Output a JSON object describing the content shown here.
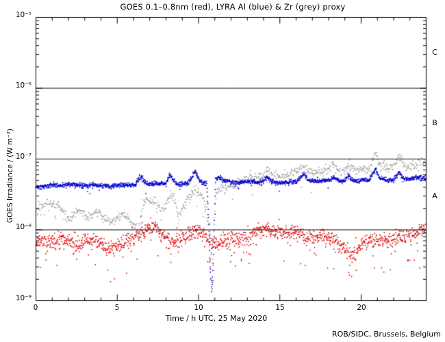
{
  "credit": "ROB/SIDC, Brussels, Belgium",
  "colors": {
    "background": "#ffffff",
    "frame": "#000000",
    "goes_red": "#dd0000",
    "lyra_al_blue": "#0000cc",
    "lyra_zr_grey": "#9e9e9e"
  },
  "chart_data": {
    "type": "scatter",
    "title": "GOES 0.1–0.8nm (red), LYRA Al (blue) & Zr (grey) proxy",
    "xlabel": "Time / h UTC, 25 May 2020",
    "ylabel": "GOES Irradiance / (W m⁻²)",
    "x_range": [
      0,
      24
    ],
    "x_minor_step": 1,
    "x_ticks": [
      {
        "value": 0,
        "label": "0"
      },
      {
        "value": 5,
        "label": "5"
      },
      {
        "value": 10,
        "label": "10"
      },
      {
        "value": 15,
        "label": "15"
      },
      {
        "value": 20,
        "label": "20"
      }
    ],
    "y_scale": "log",
    "y_range": [
      1e-09,
      1e-05
    ],
    "y_ticks": [
      {
        "value": 1e-05,
        "label": "10⁻⁵"
      },
      {
        "value": 1e-06,
        "label": "10⁻⁶"
      },
      {
        "value": 1e-07,
        "label": "10⁻⁷"
      },
      {
        "value": 1e-08,
        "label": "10⁻⁸"
      },
      {
        "value": 1e-09,
        "label": "10⁻⁹"
      }
    ],
    "hlines": [
      1e-06,
      1e-07,
      1e-08
    ],
    "flare_class_labels": [
      {
        "label": "C",
        "value": 3.16e-06
      },
      {
        "label": "B",
        "value": 3.16e-07
      },
      {
        "label": "A",
        "value": 3.16e-08
      }
    ],
    "grid": false,
    "legend": "in title",
    "series": [
      {
        "name": "GOES 0.1-0.8nm",
        "color": "#dd0000",
        "points_per_hour": 55,
        "jitter_dex": 0.055,
        "outlier_rate": 0.06,
        "outlier_dex": 0.45,
        "seed": 11,
        "anchors": [
          [
            0,
            7e-09
          ],
          [
            0.5,
            6.8e-09
          ],
          [
            1,
            6.5e-09
          ],
          [
            1.5,
            7e-09
          ],
          [
            2,
            7.2e-09
          ],
          [
            2.5,
            6.2e-09
          ],
          [
            3,
            7e-09
          ],
          [
            3.5,
            6.8e-09
          ],
          [
            4,
            6.2e-09
          ],
          [
            4.6,
            5.4e-09
          ],
          [
            5,
            6e-09
          ],
          [
            5.6,
            6.8e-09
          ],
          [
            6.2,
            8e-09
          ],
          [
            6.9,
            1.05e-08
          ],
          [
            7.3,
            1.1e-08
          ],
          [
            7.7,
            9e-09
          ],
          [
            8.2,
            6.8e-09
          ],
          [
            8.8,
            7.2e-09
          ],
          [
            9.4,
            8.5e-09
          ],
          [
            9.9,
            1e-08
          ],
          [
            10.3,
            9e-09
          ],
          [
            10.7,
            6.5e-09
          ],
          [
            11.1,
            6e-09
          ],
          [
            11.5,
            7e-09
          ],
          [
            12,
            7.5e-09
          ],
          [
            12.5,
            7.2e-09
          ],
          [
            13,
            8e-09
          ],
          [
            13.6,
            9.5e-09
          ],
          [
            14,
            1e-08
          ],
          [
            14.5,
            9.2e-09
          ],
          [
            15,
            9.8e-09
          ],
          [
            15.5,
            8.8e-09
          ],
          [
            16,
            9.2e-09
          ],
          [
            16.5,
            8.2e-09
          ],
          [
            17,
            7.8e-09
          ],
          [
            17.5,
            8.2e-09
          ],
          [
            18,
            7.6e-09
          ],
          [
            18.5,
            6.6e-09
          ],
          [
            19,
            5.4e-09
          ],
          [
            19.4,
            4.4e-09
          ],
          [
            19.8,
            5.2e-09
          ],
          [
            20.2,
            6.6e-09
          ],
          [
            20.6,
            7e-09
          ],
          [
            21,
            7.4e-09
          ],
          [
            21.5,
            7e-09
          ],
          [
            22,
            7.6e-09
          ],
          [
            22.5,
            8e-09
          ],
          [
            23,
            8.6e-09
          ],
          [
            23.5,
            9.6e-09
          ],
          [
            24,
            1.1e-08
          ]
        ]
      },
      {
        "name": "LYRA Zr proxy",
        "color": "#9e9e9e",
        "points_per_hour": 34,
        "jitter_dex": 0.034,
        "outlier_rate": 0.03,
        "outlier_dex": 0.3,
        "seed": 22,
        "anchors": [
          [
            0,
            1.8e-08
          ],
          [
            0.4,
            2.2e-08
          ],
          [
            0.8,
            2.5e-08
          ],
          [
            1.2,
            2.2e-08
          ],
          [
            1.6,
            1.9e-08
          ],
          [
            2.0,
            1.5e-08
          ],
          [
            2.4,
            1.7e-08
          ],
          [
            2.7,
            1.9e-08
          ],
          [
            3.1,
            1.5e-08
          ],
          [
            3.5,
            1.6e-08
          ],
          [
            3.9,
            1.9e-08
          ],
          [
            4.2,
            1.5e-08
          ],
          [
            4.6,
            1.3e-08
          ],
          [
            5.0,
            1.5e-08
          ],
          [
            5.3,
            1.7e-08
          ],
          [
            5.7,
            1.4e-08
          ],
          [
            6.0,
            1.2e-08
          ],
          [
            6.3,
            1e-08
          ],
          [
            6.55,
            2e-08
          ],
          [
            6.8,
            2.8e-08
          ],
          [
            7.1,
            2.6e-08
          ],
          [
            7.5,
            2.1e-08
          ],
          [
            7.9,
            1.9e-08
          ],
          [
            8.25,
            3.3e-08
          ],
          [
            8.5,
            2.9e-08
          ],
          [
            8.75,
            1.5e-08
          ],
          [
            9.0,
            1.9e-08
          ],
          [
            9.3,
            2.7e-08
          ],
          [
            9.6,
            3.3e-08
          ],
          [
            9.85,
            4e-08
          ],
          [
            10.1,
            3.3e-08
          ],
          [
            10.35,
            2.4e-08
          ],
          [
            10.55,
            1.5e-08
          ],
          [
            10.7,
            9e-09
          ],
          [
            10.82,
            4.5e-09
          ],
          [
            10.95,
            1.4e-08
          ],
          [
            11.1,
            3.4e-08
          ],
          [
            11.4,
            3.9e-08
          ],
          [
            11.7,
            4.2e-08
          ],
          [
            12.0,
            4.1e-08
          ],
          [
            12.4,
            4.5e-08
          ],
          [
            12.8,
            5.1e-08
          ],
          [
            13.2,
            5.5e-08
          ],
          [
            13.6,
            5.3e-08
          ],
          [
            14.0,
            5.7e-08
          ],
          [
            14.3,
            7.2e-08
          ],
          [
            14.6,
            5.9e-08
          ],
          [
            15.0,
            5.7e-08
          ],
          [
            15.5,
            6.1e-08
          ],
          [
            16.0,
            6.4e-08
          ],
          [
            16.5,
            7.9e-08
          ],
          [
            16.8,
            6.7e-08
          ],
          [
            17.2,
            6.5e-08
          ],
          [
            17.6,
            6.7e-08
          ],
          [
            18.0,
            7.1e-08
          ],
          [
            18.3,
            7.7e-08
          ],
          [
            18.7,
            6.8e-08
          ],
          [
            19.0,
            7e-08
          ],
          [
            19.25,
            8.3e-08
          ],
          [
            19.6,
            7e-08
          ],
          [
            20.0,
            7.2e-08
          ],
          [
            20.5,
            7.1e-08
          ],
          [
            20.9,
            1.25e-07
          ],
          [
            21.15,
            8e-08
          ],
          [
            21.6,
            7.3e-08
          ],
          [
            22.0,
            7.6e-08
          ],
          [
            22.35,
            1.1e-07
          ],
          [
            22.7,
            7.8e-08
          ],
          [
            23.1,
            8e-08
          ],
          [
            23.6,
            9.4e-08
          ],
          [
            24,
            9e-08
          ]
        ]
      },
      {
        "name": "LYRA Al proxy",
        "color": "#0000cc",
        "points_per_hour": 70,
        "jitter_dex": 0.016,
        "outlier_rate": 0.012,
        "outlier_dex": 0.15,
        "seed": 33,
        "anchors": [
          [
            0,
            4e-08
          ],
          [
            0.5,
            4.1e-08
          ],
          [
            1,
            4.3e-08
          ],
          [
            1.5,
            4.2e-08
          ],
          [
            2,
            4.4e-08
          ],
          [
            2.5,
            4.3e-08
          ],
          [
            3,
            4.2e-08
          ],
          [
            3.5,
            4.3e-08
          ],
          [
            4,
            4.2e-08
          ],
          [
            4.5,
            4.1e-08
          ],
          [
            5,
            4.2e-08
          ],
          [
            5.5,
            4.3e-08
          ],
          [
            6.1,
            4.3e-08
          ],
          [
            6.35,
            5.3e-08
          ],
          [
            6.5,
            5.6e-08
          ],
          [
            6.65,
            4.7e-08
          ],
          [
            7,
            4.4e-08
          ],
          [
            7.5,
            4.5e-08
          ],
          [
            8,
            4.5e-08
          ],
          [
            8.25,
            6e-08
          ],
          [
            8.45,
            5e-08
          ],
          [
            8.7,
            4.3e-08
          ],
          [
            9,
            4.5e-08
          ],
          [
            9.4,
            4.6e-08
          ],
          [
            9.8,
            6.8e-08
          ],
          [
            9.95,
            5.6e-08
          ],
          [
            10.2,
            4.7e-08
          ],
          [
            10.5,
            4.5e-08
          ],
          [
            10.62,
            1.4e-08
          ],
          [
            10.72,
            3e-09
          ],
          [
            10.8,
            1.35e-09
          ],
          [
            10.88,
            2.2e-09
          ],
          [
            10.96,
            1.1e-08
          ],
          [
            11.05,
            5.2e-08
          ],
          [
            11.2,
            5.5e-08
          ],
          [
            11.5,
            5e-08
          ],
          [
            11.8,
            4.8e-08
          ],
          [
            12.2,
            4.6e-08
          ],
          [
            12.5,
            4.7e-08
          ],
          [
            13,
            4.8e-08
          ],
          [
            13.5,
            4.7e-08
          ],
          [
            14,
            4.8e-08
          ],
          [
            14.25,
            5.6e-08
          ],
          [
            14.5,
            4.8e-08
          ],
          [
            15,
            4.6e-08
          ],
          [
            15.5,
            4.7e-08
          ],
          [
            16,
            4.8e-08
          ],
          [
            16.5,
            6.2e-08
          ],
          [
            16.7,
            5.1e-08
          ],
          [
            17,
            4.9e-08
          ],
          [
            17.5,
            4.8e-08
          ],
          [
            18,
            5e-08
          ],
          [
            18.3,
            5.5e-08
          ],
          [
            18.6,
            4.9e-08
          ],
          [
            19,
            4.9e-08
          ],
          [
            19.2,
            5.9e-08
          ],
          [
            19.5,
            4.9e-08
          ],
          [
            20,
            5e-08
          ],
          [
            20.5,
            5.1e-08
          ],
          [
            20.9,
            7.4e-08
          ],
          [
            21.1,
            5.4e-08
          ],
          [
            21.5,
            5e-08
          ],
          [
            22,
            5.1e-08
          ],
          [
            22.35,
            6.6e-08
          ],
          [
            22.6,
            5.2e-08
          ],
          [
            23,
            5.2e-08
          ],
          [
            23.5,
            5.5e-08
          ],
          [
            24,
            5.3e-08
          ]
        ]
      }
    ]
  }
}
